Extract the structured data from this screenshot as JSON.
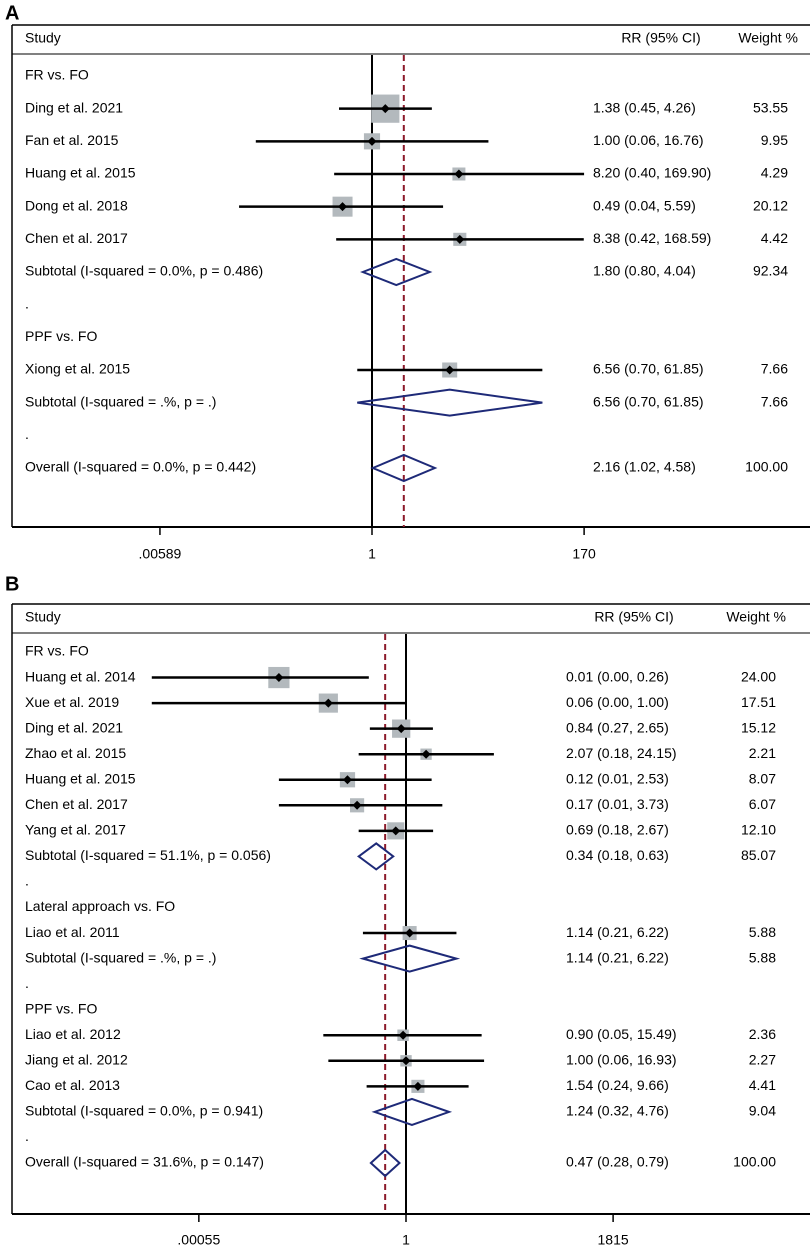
{
  "chart_data": [
    {
      "type": "forest",
      "panel_label": "A",
      "headers": {
        "study": "Study",
        "effect": "RR (95% CI)",
        "weight": "Weight  %"
      },
      "axis": {
        "scale": "log",
        "ticks": [
          ".00589",
          "1",
          "170"
        ],
        "tick_values": [
          0.00589,
          1,
          170
        ],
        "range_log": [
          -5.6,
          7.9
        ]
      },
      "null_value": 1,
      "overall_estimate": 2.16,
      "rows": [
        {
          "kind": "group",
          "label": "FR vs. FO"
        },
        {
          "kind": "study",
          "label": "Ding et al. 2021",
          "rr": 1.38,
          "lo": 0.45,
          "hi": 4.26,
          "effect_text": "1.38 (0.45, 4.26)",
          "weight": "53.55",
          "w": 53.55
        },
        {
          "kind": "study",
          "label": "Fan et al. 2015",
          "rr": 1.0,
          "lo": 0.06,
          "hi": 16.76,
          "effect_text": "1.00 (0.06, 16.76)",
          "weight": "9.95",
          "w": 9.95
        },
        {
          "kind": "study",
          "label": "Huang et al. 2015",
          "rr": 8.2,
          "lo": 0.4,
          "hi": 169.9,
          "effect_text": "8.20 (0.40, 169.90)",
          "weight": "4.29",
          "w": 4.29
        },
        {
          "kind": "study",
          "label": "Dong et al. 2018",
          "rr": 0.49,
          "lo": 0.04,
          "hi": 5.59,
          "effect_text": "0.49 (0.04, 5.59)",
          "weight": "20.12",
          "w": 20.12
        },
        {
          "kind": "study",
          "label": "Chen et al. 2017",
          "rr": 8.38,
          "lo": 0.42,
          "hi": 168.59,
          "effect_text": "8.38 (0.42, 168.59)",
          "weight": "4.42",
          "w": 4.42
        },
        {
          "kind": "subtotal",
          "label": "Subtotal  (I-squared = 0.0%, p = 0.486)",
          "rr": 1.8,
          "lo": 0.8,
          "hi": 4.04,
          "effect_text": "1.80 (0.80, 4.04)",
          "weight": "92.34"
        },
        {
          "kind": "dot",
          "label": "."
        },
        {
          "kind": "group",
          "label": "PPF vs. FO"
        },
        {
          "kind": "study",
          "label": "Xiong et al. 2015",
          "rr": 6.56,
          "lo": 0.7,
          "hi": 61.85,
          "effect_text": "6.56 (0.70, 61.85)",
          "weight": "7.66",
          "w": 7.66
        },
        {
          "kind": "subtotal",
          "label": "Subtotal  (I-squared = .%, p = .)",
          "rr": 6.56,
          "lo": 0.7,
          "hi": 61.85,
          "effect_text": "6.56 (0.70, 61.85)",
          "weight": "7.66"
        },
        {
          "kind": "dot",
          "label": "."
        },
        {
          "kind": "overall",
          "label": "Overall  (I-squared = 0.0%, p = 0.442)",
          "rr": 2.16,
          "lo": 1.02,
          "hi": 4.58,
          "effect_text": "2.16 (1.02, 4.58)",
          "weight": "100.00"
        }
      ]
    },
    {
      "type": "forest",
      "panel_label": "B",
      "headers": {
        "study": "Study",
        "effect": "RR (95% CI)",
        "weight": "Weight  %"
      },
      "axis": {
        "scale": "log",
        "ticks": [
          ".00055",
          "1",
          "1815"
        ],
        "tick_values": [
          0.00055,
          1,
          1815
        ],
        "range_log": [
          -8.4,
          7.6
        ]
      },
      "null_value": 1,
      "overall_estimate": 0.47,
      "rows": [
        {
          "kind": "group",
          "label": "FR vs. FO"
        },
        {
          "kind": "study",
          "label": "Huang et al. 2014",
          "rr": 0.01,
          "lo": 0.0,
          "hi": 0.26,
          "effect_text": "0.01 (0.00, 0.26)",
          "weight": "24.00",
          "w": 24.0
        },
        {
          "kind": "study",
          "label": "Xue et al. 2019",
          "rr": 0.06,
          "lo": 0.0,
          "hi": 1.0,
          "effect_text": "0.06 (0.00, 1.00)",
          "weight": "17.51",
          "w": 17.51
        },
        {
          "kind": "study",
          "label": "Ding et al. 2021",
          "rr": 0.84,
          "lo": 0.27,
          "hi": 2.65,
          "effect_text": "0.84 (0.27, 2.65)",
          "weight": "15.12",
          "w": 15.12
        },
        {
          "kind": "study",
          "label": "Zhao et al. 2015",
          "rr": 2.07,
          "lo": 0.18,
          "hi": 24.15,
          "effect_text": "2.07 (0.18, 24.15)",
          "weight": "2.21",
          "w": 2.21
        },
        {
          "kind": "study",
          "label": "Huang et al. 2015",
          "rr": 0.12,
          "lo": 0.01,
          "hi": 2.53,
          "effect_text": "0.12 (0.01, 2.53)",
          "weight": "8.07",
          "w": 8.07
        },
        {
          "kind": "study",
          "label": "Chen et al. 2017",
          "rr": 0.17,
          "lo": 0.01,
          "hi": 3.73,
          "effect_text": "0.17 (0.01, 3.73)",
          "weight": "6.07",
          "w": 6.07
        },
        {
          "kind": "study",
          "label": "Yang et al. 2017",
          "rr": 0.69,
          "lo": 0.18,
          "hi": 2.67,
          "effect_text": "0.69 (0.18, 2.67)",
          "weight": "12.10",
          "w": 12.1
        },
        {
          "kind": "subtotal",
          "label": "Subtotal  (I-squared = 51.1%, p = 0.056)",
          "rr": 0.34,
          "lo": 0.18,
          "hi": 0.63,
          "effect_text": "0.34 (0.18, 0.63)",
          "weight": "85.07"
        },
        {
          "kind": "dot",
          "label": "."
        },
        {
          "kind": "group",
          "label": "Lateral approach vs. FO"
        },
        {
          "kind": "study",
          "label": "Liao et al. 2011",
          "rr": 1.14,
          "lo": 0.21,
          "hi": 6.22,
          "effect_text": "1.14 (0.21, 6.22)",
          "weight": "5.88",
          "w": 5.88
        },
        {
          "kind": "subtotal",
          "label": "Subtotal  (I-squared = .%, p = .)",
          "rr": 1.14,
          "lo": 0.21,
          "hi": 6.22,
          "effect_text": "1.14 (0.21, 6.22)",
          "weight": "5.88"
        },
        {
          "kind": "dot",
          "label": "."
        },
        {
          "kind": "group",
          "label": "PPF vs. FO"
        },
        {
          "kind": "study",
          "label": "Liao et al. 2012",
          "rr": 0.9,
          "lo": 0.05,
          "hi": 15.49,
          "effect_text": "0.90 (0.05, 15.49)",
          "weight": "2.36",
          "w": 2.36
        },
        {
          "kind": "study",
          "label": "Jiang et al. 2012",
          "rr": 1.0,
          "lo": 0.06,
          "hi": 16.93,
          "effect_text": "1.00 (0.06, 16.93)",
          "weight": "2.27",
          "w": 2.27
        },
        {
          "kind": "study",
          "label": "Cao et al. 2013",
          "rr": 1.54,
          "lo": 0.24,
          "hi": 9.66,
          "effect_text": "1.54 (0.24, 9.66)",
          "weight": "4.41",
          "w": 4.41
        },
        {
          "kind": "subtotal",
          "label": "Subtotal  (I-squared = 0.0%, p = 0.941)",
          "rr": 1.24,
          "lo": 0.32,
          "hi": 4.76,
          "effect_text": "1.24 (0.32, 4.76)",
          "weight": "9.04"
        },
        {
          "kind": "dot",
          "label": "."
        },
        {
          "kind": "overall",
          "label": "Overall  (I-squared = 31.6%, p = 0.147)",
          "rr": 0.47,
          "lo": 0.28,
          "hi": 0.79,
          "effect_text": "0.47 (0.28, 0.79)",
          "weight": "100.00"
        }
      ]
    }
  ],
  "colors": {
    "ci_line": "#000000",
    "weight_box": "#b3b9bd",
    "diamond": "#1e2a78",
    "overall_line": "#8b1a2b"
  }
}
